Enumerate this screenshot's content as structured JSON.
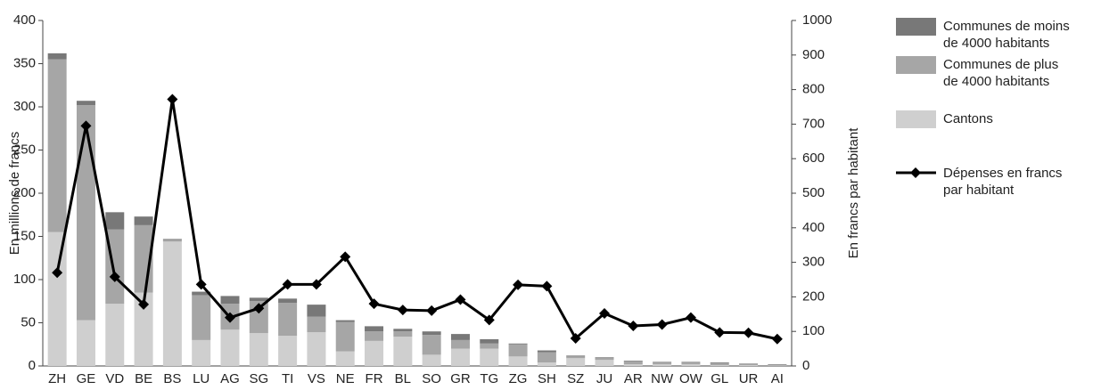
{
  "chart_data": {
    "type": "bar",
    "stacked": true,
    "ylabel": "En millions de francs",
    "y2label": "En francs par habitant",
    "categories": [
      "ZH",
      "GE",
      "VD",
      "BE",
      "BS",
      "LU",
      "AG",
      "SG",
      "TI",
      "VS",
      "NE",
      "FR",
      "BL",
      "SO",
      "GR",
      "TG",
      "ZG",
      "SH",
      "SZ",
      "JU",
      "AR",
      "NW",
      "OW",
      "GL",
      "UR",
      "AI"
    ],
    "series": [
      {
        "name": "Cantons",
        "color": "#cfcfcf",
        "values": [
          155,
          53,
          72,
          85,
          144,
          30,
          42,
          38,
          35,
          39,
          17,
          29,
          34,
          13,
          20,
          20,
          11,
          4,
          9,
          7,
          2,
          2,
          2,
          1,
          1,
          0.5
        ]
      },
      {
        "name": "Communes de plus de 4000 habitants",
        "color": "#a6a6a6",
        "values": [
          200,
          249,
          86,
          78,
          2,
          52,
          30,
          37,
          38,
          18,
          34,
          11,
          6,
          23,
          10,
          6,
          14,
          12,
          2,
          2,
          3,
          3,
          3,
          2,
          2,
          1
        ]
      },
      {
        "name": "Communes de moins de 4000 habitants",
        "color": "#787878",
        "values": [
          7,
          5,
          20,
          10,
          1,
          4,
          9,
          4,
          5,
          14,
          2,
          6,
          3,
          4,
          7,
          5,
          1,
          2,
          1,
          1,
          1,
          0,
          0,
          1,
          0,
          0.5
        ]
      },
      {
        "name": "Dépenses en francs par habitant",
        "type": "line",
        "axis": "y2",
        "color": "#000000",
        "values": [
          270,
          695,
          258,
          178,
          772,
          236,
          140,
          167,
          236,
          236,
          316,
          180,
          162,
          160,
          192,
          133,
          235,
          231,
          80,
          152,
          116,
          120,
          140,
          97,
          96,
          78
        ]
      }
    ],
    "ylim": [
      0,
      400
    ],
    "yticks": [
      0,
      50,
      100,
      150,
      200,
      250,
      300,
      350,
      400
    ],
    "y2lim": [
      0,
      1000
    ],
    "y2ticks": [
      0,
      100,
      200,
      300,
      400,
      500,
      600,
      700,
      800,
      900,
      1000
    ],
    "grid": false,
    "legend": "right"
  }
}
